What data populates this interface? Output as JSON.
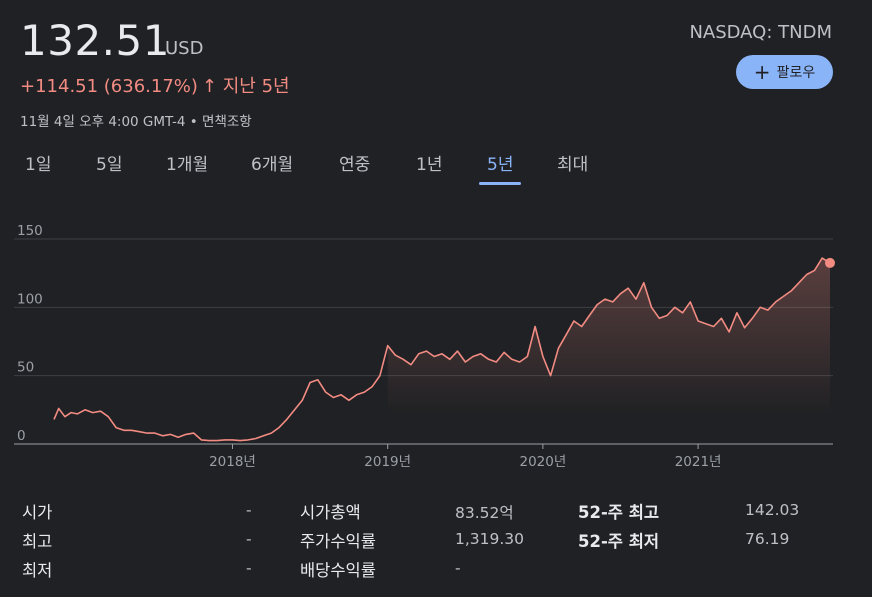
{
  "quote": {
    "price": "132.51",
    "currency": "USD",
    "change": "+114.51 (636.17%)",
    "arrow": "↑",
    "period": "지난 5년",
    "timestamp": "11월 4일 오후 4:00 GMT-4 • 면책조항",
    "ticker": "NASDAQ: TNDM",
    "follow_label": "팔로우",
    "accent_color": "#8ab4f8",
    "negative_color": "#f28b82"
  },
  "tabs": [
    {
      "label": "1일",
      "active": false
    },
    {
      "label": "5일",
      "active": false
    },
    {
      "label": "1개월",
      "active": false
    },
    {
      "label": "6개월",
      "active": false
    },
    {
      "label": "연중",
      "active": false
    },
    {
      "label": "1년",
      "active": false
    },
    {
      "label": "5년",
      "active": true
    },
    {
      "label": "최대",
      "active": false
    }
  ],
  "chart_data": {
    "type": "line",
    "title": "",
    "xlabel": "",
    "ylabel": "",
    "ylim": [
      0,
      150
    ],
    "yticks": [
      0,
      50,
      100,
      150
    ],
    "xticks": [
      "2018년",
      "2019년",
      "2020년",
      "2021년"
    ],
    "xlim": [
      2016.85,
      2021.85
    ],
    "grid": true,
    "series": [
      {
        "color": "#f28b82",
        "x": [
          2016.85,
          2016.88,
          2016.92,
          2016.96,
          2017.0,
          2017.05,
          2017.1,
          2017.15,
          2017.2,
          2017.25,
          2017.3,
          2017.35,
          2017.4,
          2017.45,
          2017.5,
          2017.55,
          2017.6,
          2017.65,
          2017.7,
          2017.75,
          2017.8,
          2017.85,
          2017.9,
          2017.95,
          2018.0,
          2018.05,
          2018.1,
          2018.15,
          2018.2,
          2018.25,
          2018.3,
          2018.35,
          2018.4,
          2018.45,
          2018.5,
          2018.55,
          2018.6,
          2018.65,
          2018.7,
          2018.75,
          2018.8,
          2018.85,
          2018.9,
          2018.95,
          2019.0,
          2019.05,
          2019.1,
          2019.15,
          2019.2,
          2019.25,
          2019.3,
          2019.35,
          2019.4,
          2019.45,
          2019.5,
          2019.55,
          2019.6,
          2019.65,
          2019.7,
          2019.75,
          2019.8,
          2019.85,
          2019.9,
          2019.95,
          2020.0,
          2020.05,
          2020.1,
          2020.15,
          2020.2,
          2020.25,
          2020.3,
          2020.35,
          2020.4,
          2020.45,
          2020.5,
          2020.55,
          2020.6,
          2020.65,
          2020.7,
          2020.75,
          2020.8,
          2020.85,
          2020.9,
          2020.95,
          2021.0,
          2021.05,
          2021.1,
          2021.15,
          2021.2,
          2021.25,
          2021.3,
          2021.35,
          2021.4,
          2021.45,
          2021.5,
          2021.55,
          2021.6,
          2021.65,
          2021.7,
          2021.75,
          2021.8,
          2021.85
        ],
        "y": [
          18.0,
          26.0,
          20.0,
          23.0,
          22.0,
          25.0,
          23.0,
          24.0,
          20.0,
          12.0,
          10.0,
          10.0,
          9.0,
          8.0,
          8.0,
          6.0,
          7.0,
          5.0,
          7.0,
          8.0,
          3.0,
          2.5,
          2.5,
          3.0,
          3.0,
          2.5,
          3.0,
          4.0,
          6.0,
          8.0,
          12.0,
          18.0,
          25.0,
          32.0,
          45.0,
          47.0,
          38.0,
          34.0,
          36.0,
          32.0,
          36.0,
          38.0,
          42.0,
          50.0,
          72.0,
          65.0,
          62.0,
          58.0,
          66.0,
          68.0,
          64.0,
          66.0,
          62.0,
          68.0,
          60.0,
          64.0,
          66.0,
          62.0,
          60.0,
          67.0,
          62.0,
          60.0,
          64.0,
          86.0,
          64.0,
          50.0,
          70.0,
          80.0,
          90.0,
          86.0,
          94.0,
          102.0,
          106.0,
          104.0,
          110.0,
          114.0,
          106.0,
          118.0,
          100.0,
          92.0,
          94.0,
          100.0,
          96.0,
          104.0,
          90.0,
          88.0,
          86.0,
          92.0,
          82.0,
          96.0,
          85.0,
          92.0,
          100.0,
          98.0,
          104.0,
          108.0,
          112.0,
          118.0,
          124.0,
          127.0,
          136.0,
          132.5
        ]
      }
    ]
  },
  "stats": {
    "col1": [
      {
        "label": "시가",
        "value": "-"
      },
      {
        "label": "최고",
        "value": "-"
      },
      {
        "label": "최저",
        "value": "-"
      }
    ],
    "col2": [
      {
        "label": "시가총액",
        "value": "83.52억"
      },
      {
        "label": "주가수익률",
        "value": "1,319.30"
      },
      {
        "label": "배당수익률",
        "value": "-"
      }
    ],
    "col3": [
      {
        "label": "52-주 최고",
        "value": "142.03"
      },
      {
        "label": "52-주 최저",
        "value": "76.19"
      }
    ]
  }
}
